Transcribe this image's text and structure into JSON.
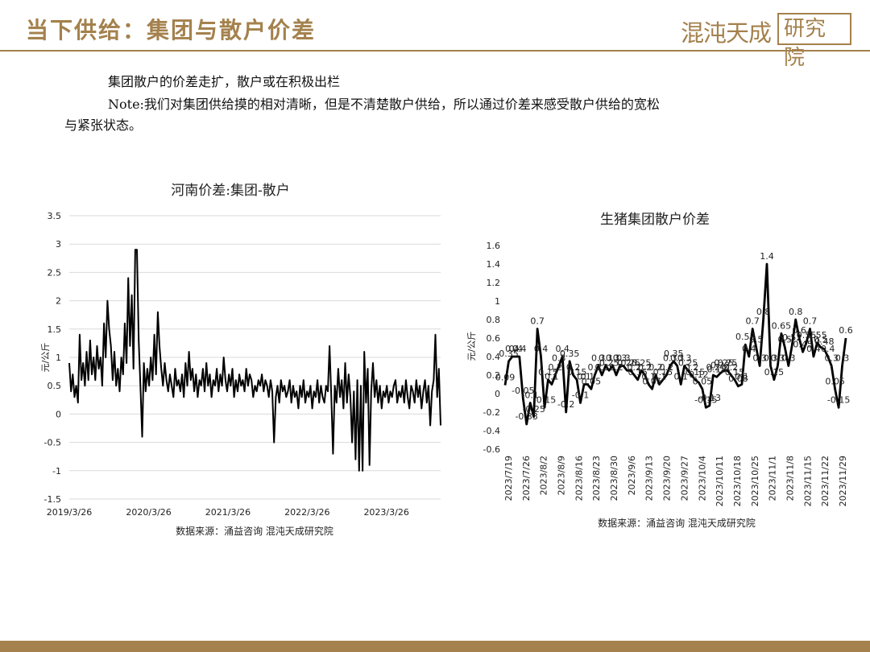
{
  "header": {
    "title": "当下供给：集团与散户价差",
    "logo_text_a": "混沌天成",
    "logo_text_b": "研究院"
  },
  "body": {
    "line1": "集团散户的价差走扩，散户或在积极出栏",
    "line2": "Note:我们对集团供给摸的相对清晰，但是不清楚散户供给，所以通过价差来感受散户供给的宽松",
    "line3": "与紧张状态。"
  },
  "chart_data": [
    {
      "type": "line",
      "title": "河南价差:集团-散户",
      "ylabel": "元/公斤",
      "ylim": [
        -1.5,
        3.5
      ],
      "yticks": [
        -1.5,
        -1,
        -0.5,
        0,
        0.5,
        1,
        1.5,
        2,
        2.5,
        3,
        3.5
      ],
      "ytick_labels": [
        "-1.5",
        "-1",
        "-0.5",
        "0",
        "0.5",
        "1",
        "1.5",
        "2",
        "2.5",
        "3",
        "3.5"
      ],
      "xtick_labels": [
        "2019/3/26",
        "2020/3/26",
        "2021/3/26",
        "2022/3/26",
        "2023/3/26"
      ],
      "x_start": "2019/3/26",
      "x_end": "2023/12/01",
      "grid": "horizontal",
      "source": "数据来源：涌益咨询 混沌天成研究院",
      "series": [
        {
          "values": [
            0.9,
            0.4,
            0.7,
            0.3,
            0.5,
            0.2,
            1.4,
            0.6,
            0.9,
            0.5,
            1.1,
            0.6,
            1.3,
            0.7,
            1.0,
            0.6,
            1.2,
            0.8,
            1.0,
            0.5,
            1.6,
            1.0,
            2.0,
            1.5,
            1.2,
            0.6,
            1.1,
            0.5,
            0.8,
            0.4,
            1.0,
            0.7,
            1.6,
            0.9,
            2.4,
            1.2,
            2.1,
            0.8,
            2.9,
            2.9,
            1.3,
            0.5,
            -0.4,
            0.9,
            0.4,
            0.8,
            0.5,
            1.0,
            0.6,
            1.4,
            0.7,
            1.8,
            1.2,
            0.8,
            0.5,
            0.9,
            0.6,
            0.4,
            0.7,
            0.5,
            0.3,
            0.8,
            0.5,
            0.6,
            0.4,
            0.7,
            0.3,
            0.9,
            0.5,
            1.1,
            0.6,
            0.8,
            0.4,
            0.7,
            0.3,
            0.6,
            0.5,
            0.8,
            0.4,
            0.9,
            0.5,
            0.7,
            0.3,
            0.6,
            0.5,
            0.8,
            0.4,
            0.7,
            0.5,
            1.0,
            0.6,
            0.4,
            0.7,
            0.5,
            0.8,
            0.3,
            0.6,
            0.4,
            0.7,
            0.5,
            0.6,
            0.4,
            0.8,
            0.5,
            0.7,
            0.6,
            0.3,
            0.5,
            0.4,
            0.6,
            0.5,
            0.7,
            0.4,
            0.6,
            0.5,
            0.3,
            0.6,
            0.4,
            -0.5,
            0.3,
            0.5,
            0.2,
            0.6,
            0.4,
            0.5,
            0.3,
            0.4,
            0.6,
            0.2,
            0.5,
            0.3,
            0.4,
            0.1,
            0.5,
            0.3,
            0.6,
            0.2,
            0.4,
            0.3,
            0.5,
            0.1,
            0.4,
            0.3,
            0.6,
            0.2,
            0.5,
            0.3,
            0.2,
            0.5,
            0.4,
            1.2,
            0.3,
            -0.7,
            0.5,
            0.2,
            0.8,
            0.3,
            0.6,
            0.1,
            0.9,
            0.2,
            0.7,
            0.3,
            -0.5,
            0.4,
            -0.8,
            0.6,
            -1.0,
            0.5,
            -1.0,
            1.1,
            0.2,
            0.8,
            -0.9,
            0.4,
            0.9,
            0.3,
            0.6,
            0.2,
            0.5,
            0.1,
            0.4,
            0.3,
            0.5,
            0.2,
            0.4,
            0.3,
            0.5,
            0.6,
            0.2,
            0.4,
            0.3,
            0.5,
            0.2,
            0.6,
            0.3,
            0.1,
            0.5,
            0.4,
            0.2,
            0.6,
            0.3,
            0.5,
            0.1,
            0.4,
            0.6,
            0.2,
            0.5,
            -0.2,
            0.4,
            0.6,
            1.4,
            0.3,
            0.8,
            -0.2
          ]
        }
      ]
    },
    {
      "type": "line",
      "title": "生猪集团散户价差",
      "ylabel": "元/公斤",
      "ylim": [
        -0.6,
        1.6
      ],
      "yticks": [
        -0.6,
        -0.4,
        -0.2,
        0,
        0.2,
        0.4,
        0.6,
        0.8,
        1,
        1.2,
        1.4,
        1.6
      ],
      "ytick_labels": [
        "-0.6",
        "-0.4",
        "-0.2",
        "0",
        "0.2",
        "0.4",
        "0.6",
        "0.8",
        "1",
        "1.2",
        "1.4",
        "1.6"
      ],
      "xtick_labels": [
        "2023/7/19",
        "2023/7/26",
        "2023/8/2",
        "2023/8/9",
        "2023/8/16",
        "2023/8/23",
        "2023/8/30",
        "2023/9/6",
        "2023/9/13",
        "2023/9/20",
        "2023/9/27",
        "2023/10/4",
        "2023/10/11",
        "2023/10/18",
        "2023/10/25",
        "2023/11/1",
        "2023/11/8",
        "2023/11/15",
        "2023/11/22",
        "2023/11/29"
      ],
      "grid": "none",
      "source": "数据来源：涌益咨询 混沌天成研究院",
      "series": [
        {
          "values": [
            0.09,
            0.35,
            0.4,
            0.4,
            0.4,
            -0.05,
            -0.33,
            -0.1,
            -0.25,
            0.7,
            0.4,
            -0.15,
            0.15,
            0.1,
            0.2,
            0.3,
            0.4,
            -0.2,
            0.35,
            0.2,
            0.15,
            -0.1,
            0.1,
            0.1,
            0.05,
            0.2,
            0.3,
            0.2,
            0.3,
            0.25,
            0.3,
            0.2,
            0.3,
            0.3,
            0.25,
            0.25,
            0.2,
            0.15,
            0.25,
            0.2,
            0.1,
            0.05,
            0.2,
            0.1,
            0.15,
            0.2,
            0.3,
            0.35,
            0.3,
            0.1,
            0.3,
            0.25,
            0.2,
            0.15,
            0.12,
            0.05,
            -0.15,
            -0.13,
            0.2,
            0.18,
            0.22,
            0.25,
            0.25,
            0.2,
            0.15,
            0.08,
            0.1,
            0.53,
            0.4,
            0.7,
            0.5,
            0.3,
            0.8,
            1.4,
            0.3,
            0.15,
            0.3,
            0.65,
            0.5,
            0.3,
            0.52,
            0.8,
            0.6,
            0.45,
            0.55,
            0.7,
            0.4,
            0.55,
            0.5,
            0.48,
            0.4,
            0.3,
            0.05,
            -0.15,
            0.3,
            0.6
          ],
          "labels": [
            "0.09",
            "0.35",
            "0.4",
            "0.4",
            "0.4",
            "-0.05",
            "-0.33",
            "-0.1",
            "-0.25",
            "0.7",
            "0.4",
            "-0.15",
            "0.15",
            "0.1",
            "0.2",
            "0.3",
            "0.4",
            "-0.2",
            "0.35",
            "0.2",
            "0.15",
            "-0.1",
            "0.1",
            "0.1",
            "0.05",
            "0.2",
            "0.3",
            "0.2",
            "0.3",
            "0.25",
            "0.3",
            "0.2",
            "0.3",
            "0.3",
            "0.25",
            "0.25",
            "0.2",
            "0.15",
            "0.25",
            "0.2",
            "0.1",
            "0.05",
            "0.2",
            "0.1",
            "0.15",
            "0.2",
            "0.3",
            "0.35",
            "0.3",
            "0.1",
            "0.3",
            "0.25",
            "0.2",
            "0.15",
            "0.12",
            "0.05",
            "-0.15",
            "-0.13",
            "0.2",
            "0.18",
            "0.22",
            "0.25",
            "0.25",
            "0.2",
            "0.15",
            "0.08",
            "0.1",
            "0.53",
            "0.4",
            "0.7",
            "0.5",
            "0.3",
            "0.8",
            "1.4",
            "0.3",
            "0.15",
            "0.3",
            "0.65",
            "0.5",
            "0.3",
            "0.52",
            "0.8",
            "0.6",
            "0.45",
            "0.55",
            "0.7",
            "0.4",
            "0.55",
            "0.5",
            "0.48",
            "0.4",
            "0.3",
            "0.05",
            "-0.15",
            "0.3",
            "0.6"
          ]
        }
      ]
    }
  ]
}
